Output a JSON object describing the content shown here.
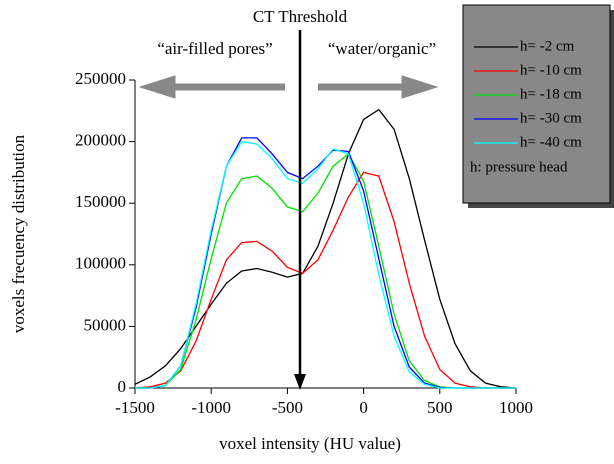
{
  "chart_data": {
    "type": "line",
    "x_label": "voxel intensity (HU value)",
    "y_label": "voxels frecuency distribution",
    "annotations": [
      "CT Threshold",
      "“air-filled pores”",
      "“water/organic”"
    ],
    "legend_note": "h: pressure head",
    "legend": "top-right",
    "x": [
      -1500,
      -1400,
      -1300,
      -1200,
      -1100,
      -1000,
      -900,
      -800,
      -700,
      -600,
      -500,
      -400,
      -300,
      -200,
      -100,
      0,
      100,
      200,
      300,
      400,
      500,
      600,
      700,
      800,
      900,
      1000
    ],
    "series": [
      {
        "name": "h= -2 cm",
        "color": "#000000",
        "values": [
          3000,
          9000,
          18000,
          32000,
          50000,
          68000,
          85000,
          95000,
          97000,
          94000,
          90000,
          93000,
          115000,
          150000,
          190000,
          218000,
          226000,
          210000,
          170000,
          120000,
          72000,
          36000,
          14000,
          4000,
          1000,
          0
        ]
      },
      {
        "name": "h= -10 cm",
        "color": "#ff0000",
        "values": [
          0,
          1000,
          4000,
          14000,
          38000,
          72000,
          104000,
          118000,
          119000,
          111000,
          98000,
          93000,
          104000,
          128000,
          155000,
          175000,
          172000,
          135000,
          85000,
          42000,
          15000,
          4000,
          1000,
          0,
          0,
          0
        ]
      },
      {
        "name": "h= -18 cm",
        "color": "#00e000",
        "values": [
          0,
          0,
          2000,
          15000,
          55000,
          105000,
          150000,
          170000,
          172000,
          162000,
          147000,
          143000,
          158000,
          180000,
          190000,
          168000,
          115000,
          60000,
          22000,
          6000,
          1000,
          0,
          0,
          0,
          0,
          0
        ]
      },
      {
        "name": "h= -30 cm",
        "color": "#0000ff",
        "values": [
          0,
          0,
          2000,
          18000,
          65000,
          125000,
          180000,
          203000,
          203000,
          190000,
          175000,
          170000,
          180000,
          193000,
          192000,
          160000,
          105000,
          50000,
          17000,
          4000,
          500,
          0,
          0,
          0,
          0,
          0
        ]
      },
      {
        "name": "h= -40 cm",
        "color": "#00ffff",
        "values": [
          0,
          0,
          2000,
          18000,
          68000,
          128000,
          180000,
          200000,
          198000,
          186000,
          170000,
          166000,
          178000,
          194000,
          190000,
          150000,
          92000,
          42000,
          13000,
          3000,
          0,
          0,
          0,
          0,
          0,
          0
        ]
      }
    ],
    "xlim": [
      -1500,
      1000
    ],
    "xticks": [
      -1500,
      -1000,
      -500,
      0,
      500,
      1000
    ],
    "ylim": [
      0,
      250000
    ],
    "yticks": [
      0,
      50000,
      100000,
      150000,
      200000,
      250000
    ]
  }
}
